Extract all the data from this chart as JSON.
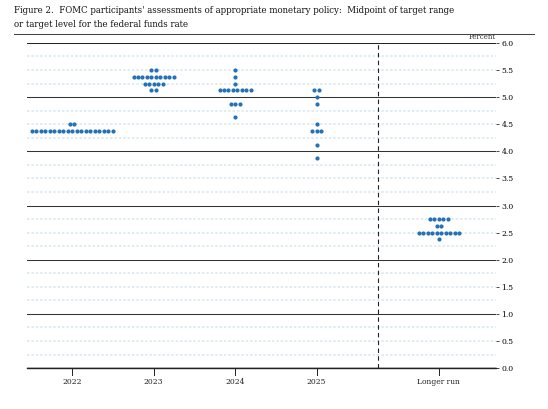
{
  "title_line1": "Figure 2.  FOMC participants' assessments of appropriate monetary policy:  Midpoint of target range",
  "title_line2": "or target level for the federal funds rate",
  "ylabel": "Percent",
  "xlabel_ticks": [
    "2022",
    "2023",
    "2024",
    "2025",
    "Longer run"
  ],
  "yticks": [
    0.0,
    0.5,
    1.0,
    1.5,
    2.0,
    2.5,
    3.0,
    3.5,
    4.0,
    4.5,
    5.0,
    5.5,
    6.0
  ],
  "ymin": 0.0,
  "ymax": 6.0,
  "dot_color": "#2272b5",
  "dot_size": 9,
  "jitter": 0.055,
  "dots": {
    "2022": {
      "4.375": 19,
      "4.5": 2
    },
    "2023": {
      "5.125": 2,
      "5.25": 5,
      "5.375": 10,
      "5.5": 2
    },
    "2024": {
      "4.625": 1,
      "4.875": 3,
      "5.125": 8,
      "5.25": 1,
      "5.375": 1,
      "5.5": 1
    },
    "2025": {
      "3.875": 1,
      "4.125": 1,
      "4.375": 3,
      "4.5": 1,
      "4.875": 1,
      "5.0": 1,
      "5.125": 2
    },
    "longer": {
      "2.375": 1,
      "2.5": 10,
      "2.625": 2,
      "2.75": 5
    }
  },
  "x_map": {
    "2022": 0.0,
    "2023": 1.0,
    "2024": 2.0,
    "2025": 3.0,
    "longer": 4.5
  },
  "vline_x": 3.75,
  "xlim": [
    -0.55,
    5.2
  ],
  "background_color": "#ffffff",
  "grid_dashed_color": "#5599bb",
  "grid_solid_color": "#333333",
  "vline_color": "#222222"
}
